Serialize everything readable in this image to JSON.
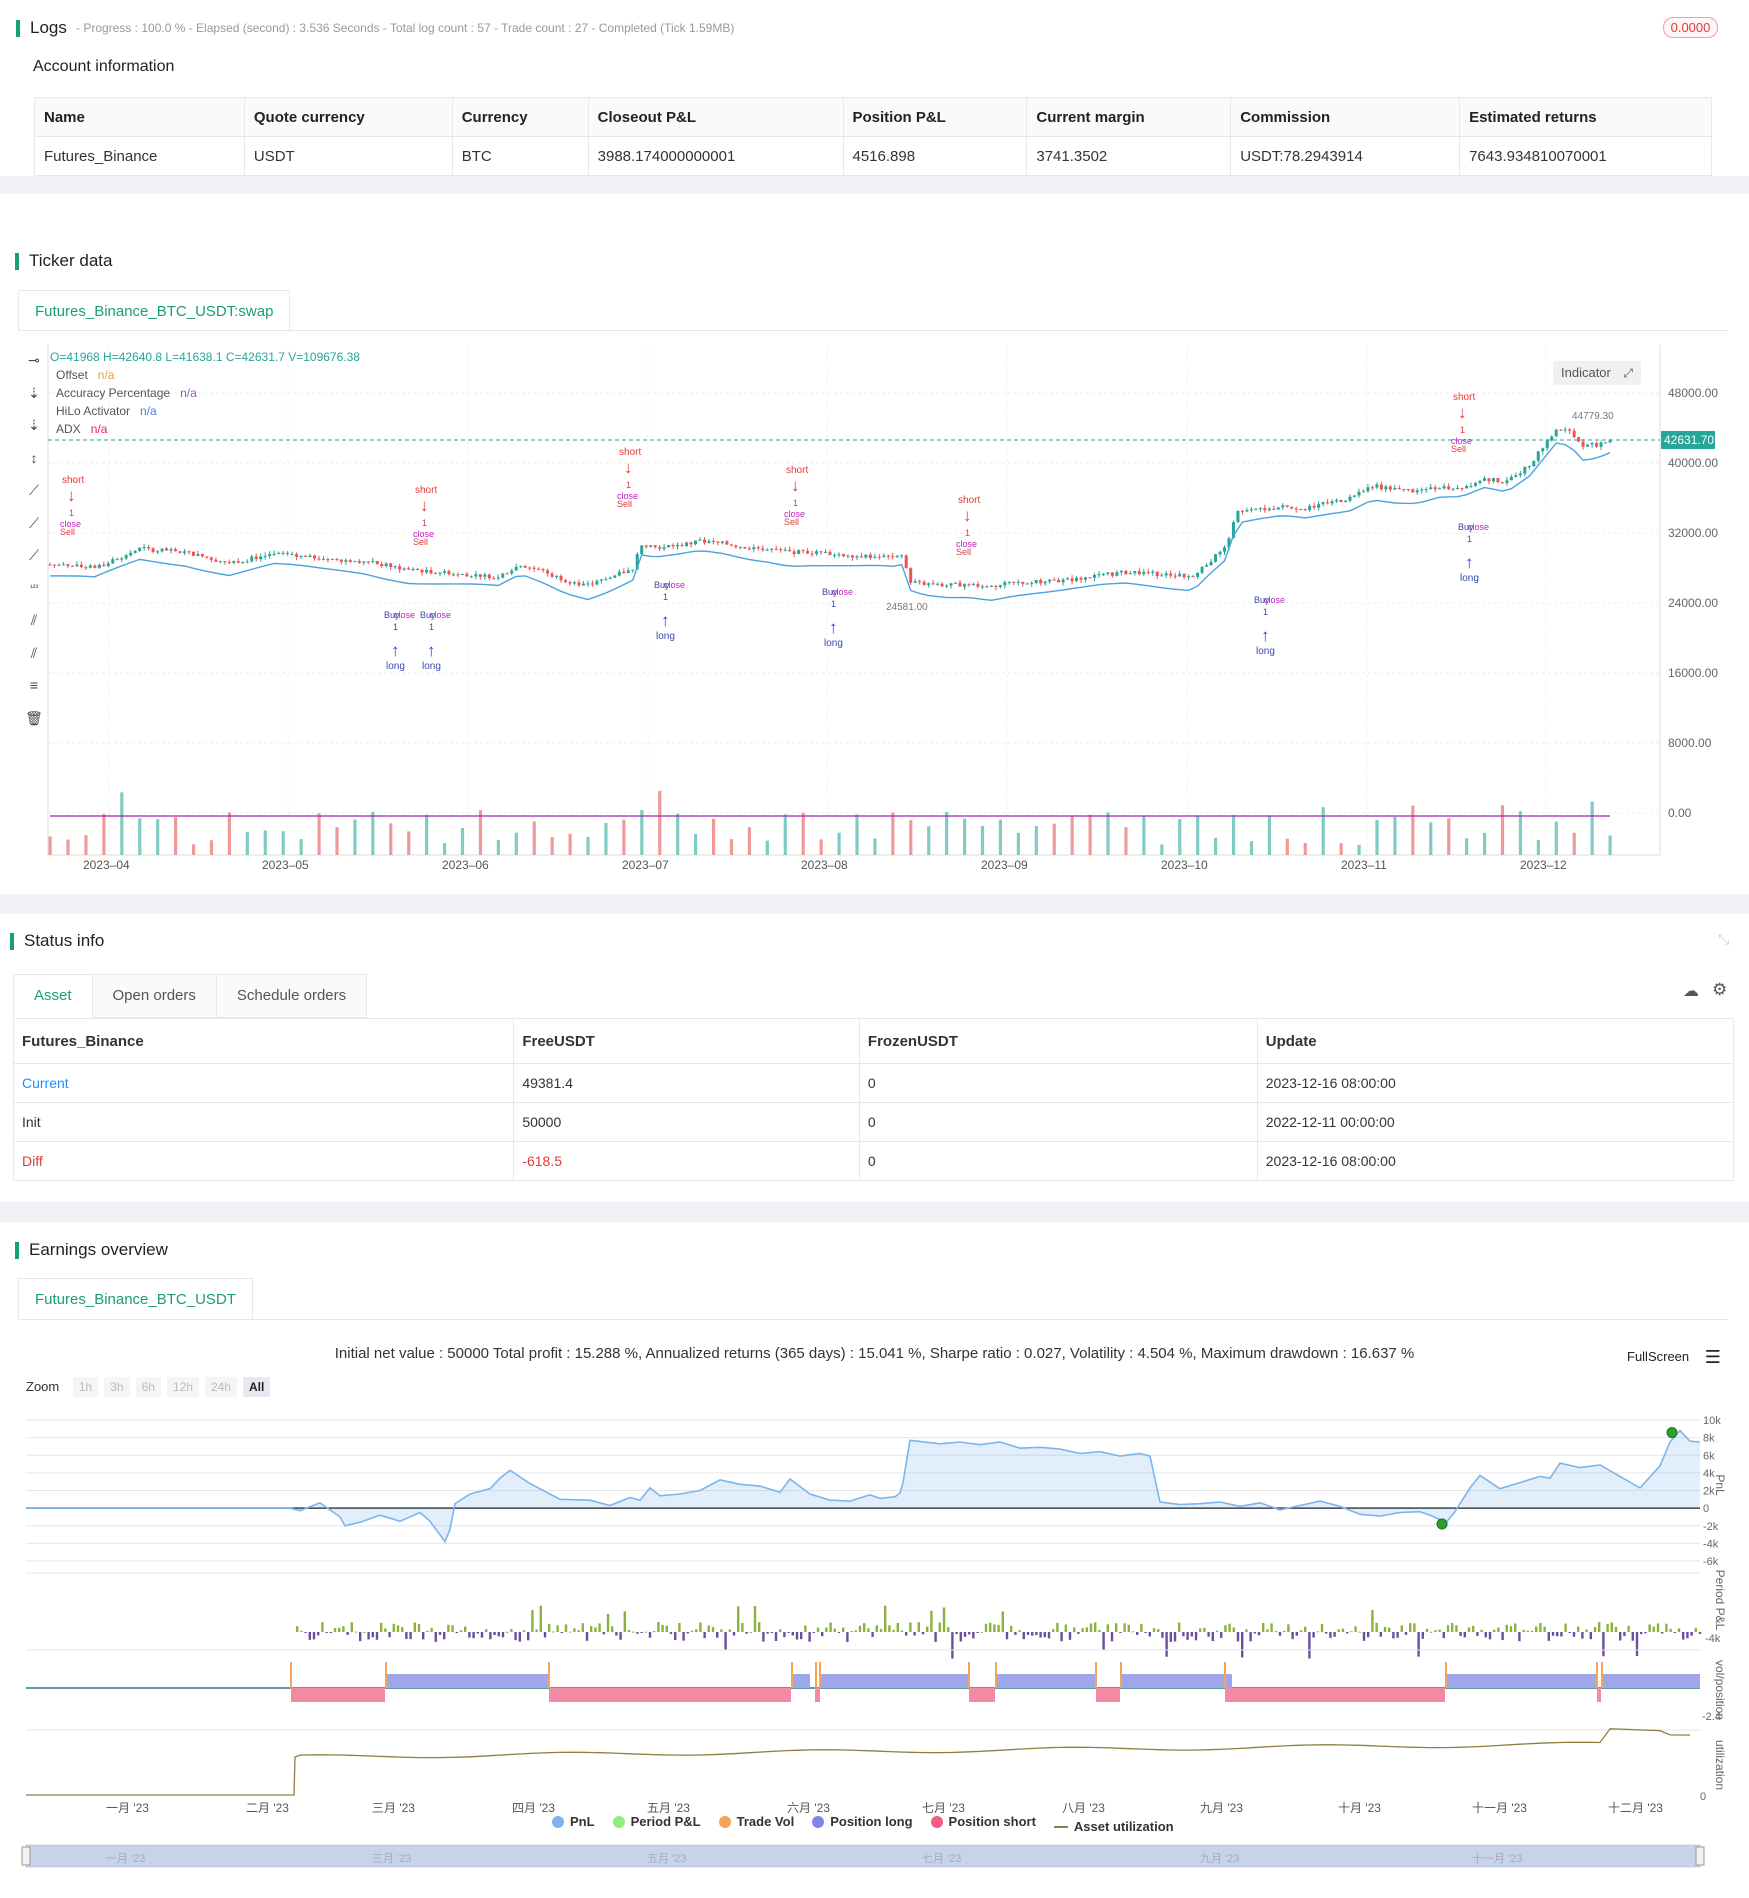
{
  "logs": {
    "title": "Logs",
    "summary": "- Progress : 100.0 % - Elapsed (second) : 3.536 Seconds - Total log count : 57 - Trade count : 27 - Completed (Tick 1.59MB)",
    "badge": "0.0000"
  },
  "account": {
    "title": "Account information",
    "headers": [
      "Name",
      "Quote currency",
      "Currency",
      "Closeout P&L",
      "Position P&L",
      "Current margin",
      "Commission",
      "Estimated returns"
    ],
    "row": [
      "Futures_Binance",
      "USDT",
      "BTC",
      "3988.174000000001",
      "4516.898",
      "3741.3502",
      "USDT:78.2943914",
      "7643.934810070001"
    ]
  },
  "ticker": {
    "title": "Ticker data",
    "tab": "Futures_Binance_BTC_USDT:swap",
    "ohlc": "O=41968 H=42640.8 L=41638.1 C=42631.7 V=109676.38",
    "indicators": [
      {
        "name": "Offset",
        "value": "n/a",
        "color": "#f0a030"
      },
      {
        "name": "Accuracy Percentage",
        "value": "n/a",
        "color": "#9b59b6"
      },
      {
        "name": "HiLo Activator",
        "value": "n/a",
        "color": "#3b82f6"
      },
      {
        "name": "ADX",
        "value": "n/a",
        "color": "#e91e63"
      }
    ],
    "indicator_button": "Indicator",
    "price_label": "42631.70",
    "high_label": "44779.30",
    "low_label": "24581.00",
    "y_ticks": [
      "48000.00",
      "40000.00",
      "32000.00",
      "24000.00",
      "16000.00",
      "8000.00",
      "0.00"
    ],
    "x_ticks": [
      "2023–04",
      "2023–05",
      "2023–06",
      "2023–07",
      "2023–08",
      "2023–09",
      "2023–10",
      "2023–11",
      "2023–12"
    ],
    "signal_labels": {
      "short": "short",
      "long": "long",
      "buy": "Buy",
      "sell": "Sell",
      "close": "close",
      "one": "1"
    }
  },
  "status": {
    "title": "Status info",
    "tabs": [
      "Asset",
      "Open orders",
      "Schedule orders"
    ],
    "headers": [
      "Futures_Binance",
      "FreeUSDT",
      "FrozenUSDT",
      "Update"
    ],
    "rows": [
      [
        "Current",
        "49381.4",
        "0",
        "2023-12-16 08:00:00"
      ],
      [
        "Init",
        "50000",
        "0",
        "2022-12-11 00:00:00"
      ],
      [
        "Diff",
        "-618.5",
        "0",
        "2023-12-16 08:00:00"
      ]
    ]
  },
  "earnings": {
    "title": "Earnings overview",
    "tab": "Futures_Binance_BTC_USDT",
    "summary": "Initial net value : 50000 Total profit : 15.288 %, Annualized returns (365 days) : 15.041 %, Sharpe ratio : 0.027, Volatility : 4.504 %, Maximum drawdown : 16.637 %",
    "fullscreen": "FullScreen",
    "zoom_label": "Zoom",
    "zoom_options": [
      "1h",
      "3h",
      "6h",
      "12h",
      "24h",
      "All"
    ],
    "pnl_ticks": [
      "10k",
      "8k",
      "6k",
      "4k",
      "2k",
      "0",
      "-2k",
      "-4k",
      "-6k"
    ],
    "period_tick": "-4k",
    "pos_tick": "-2.4",
    "util_tick": "0",
    "axis_labels": [
      "PnL",
      "Period P&L",
      "vol/position",
      "utilization"
    ],
    "months": [
      "一月 '23",
      "二月 '23",
      "三月 '23",
      "四月 '23",
      "五月 '23",
      "六月 '23",
      "七月 '23",
      "八月 '23",
      "九月 '23",
      "十月 '23",
      "十一月 '23",
      "十二月 '23"
    ],
    "navigator_months": [
      "一月 '23",
      "三月 '23",
      "五月 '23",
      "七月 '23",
      "九月 '23",
      "十一月 '23"
    ],
    "legend": [
      {
        "name": "PnL",
        "color": "#7cb5ec"
      },
      {
        "name": "Period P&L",
        "color": "#90ed7d"
      },
      {
        "name": "Trade Vol",
        "color": "#f7a35c"
      },
      {
        "name": "Position long",
        "color": "#8085e9"
      },
      {
        "name": "Position short",
        "color": "#f15c80"
      },
      {
        "name": "Asset utilization",
        "color": "#8d7f3f"
      }
    ]
  },
  "colors": {
    "accent": "#1a9e77",
    "up": "#26a69a",
    "down": "#ef5350",
    "hilo": "#4aa3df"
  }
}
